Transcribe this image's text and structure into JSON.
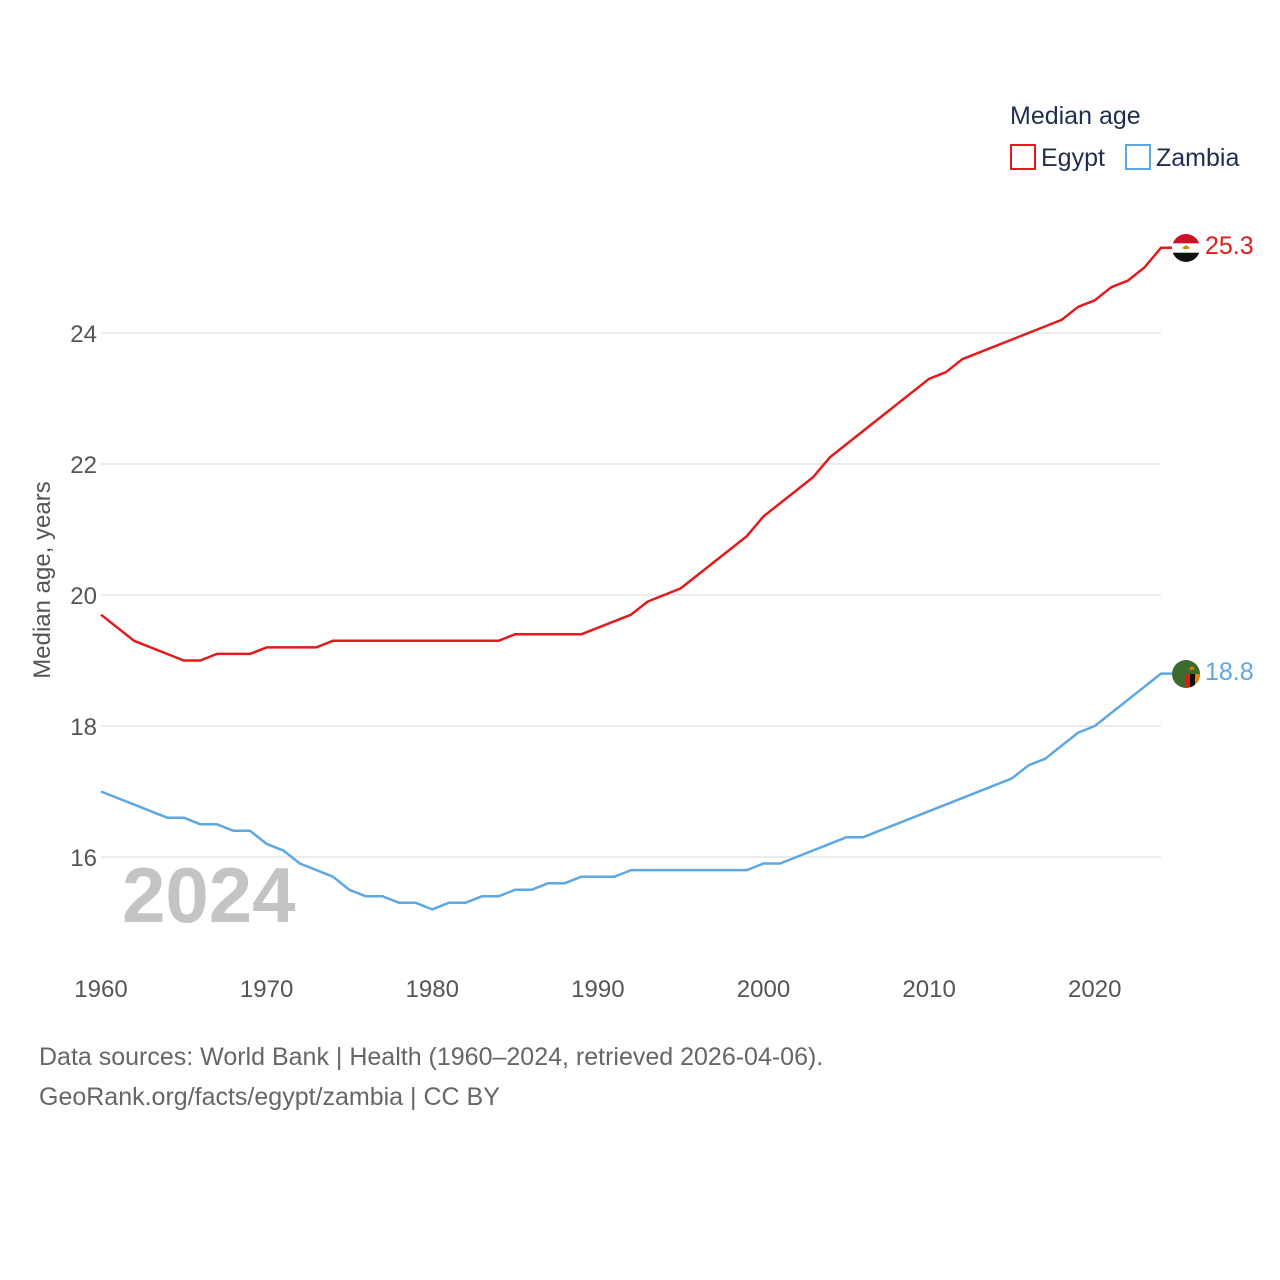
{
  "chart_data": {
    "type": "line",
    "title": "",
    "legend_title": "Median age",
    "ylabel": "Median age, years",
    "xlabel": "",
    "xlim": [
      1960,
      2024
    ],
    "ylim": [
      14.5,
      26
    ],
    "yticks": [
      16,
      18,
      20,
      22,
      24
    ],
    "xticks": [
      1960,
      1970,
      1980,
      1990,
      2000,
      2010,
      2020
    ],
    "current_year": "2024",
    "grid": true,
    "legend_position": "top-right",
    "series": [
      {
        "name": "Egypt",
        "color": "#e31a1c",
        "flag": "egypt-flag",
        "end_label": "25.3",
        "x": [
          1960,
          1962,
          1965,
          1966,
          1967,
          1969,
          1970,
          1973,
          1974,
          1984,
          1985,
          1989,
          1992,
          1993,
          1995,
          1999,
          2000,
          2003,
          2004,
          2010,
          2011,
          2012,
          2018,
          2019,
          2020,
          2021,
          2022,
          2023,
          2024
        ],
        "values": [
          19.7,
          19.3,
          19.0,
          19.0,
          19.1,
          19.1,
          19.2,
          19.2,
          19.3,
          19.3,
          19.4,
          19.4,
          19.7,
          19.9,
          20.1,
          20.9,
          21.2,
          21.8,
          22.1,
          23.3,
          23.4,
          23.6,
          24.2,
          24.4,
          24.5,
          24.7,
          24.8,
          25.0,
          25.3
        ]
      },
      {
        "name": "Zambia",
        "color": "#5da7e3",
        "flag": "zambia-flag",
        "end_label": "18.8",
        "x": [
          1960,
          1964,
          1965,
          1966,
          1967,
          1968,
          1969,
          1970,
          1971,
          1972,
          1974,
          1975,
          1976,
          1977,
          1978,
          1979,
          1980,
          1981,
          1982,
          1983,
          1984,
          1985,
          1986,
          1987,
          1988,
          1989,
          1991,
          1992,
          1999,
          2000,
          2001,
          2005,
          2006,
          2015,
          2016,
          2017,
          2019,
          2020,
          2024
        ],
        "values": [
          17.0,
          16.6,
          16.6,
          16.5,
          16.5,
          16.4,
          16.4,
          16.2,
          16.1,
          15.9,
          15.7,
          15.5,
          15.4,
          15.4,
          15.3,
          15.3,
          15.2,
          15.3,
          15.3,
          15.4,
          15.4,
          15.5,
          15.5,
          15.6,
          15.6,
          15.7,
          15.7,
          15.8,
          15.8,
          15.9,
          15.9,
          16.3,
          16.3,
          17.2,
          17.4,
          17.5,
          17.9,
          18.0,
          18.8
        ]
      }
    ]
  },
  "footer": {
    "line1": "Data sources: World Bank | Health (1960–2024, retrieved 2026-04-06).",
    "line2": "GeoRank.org/facts/egypt/zambia | CC BY"
  }
}
